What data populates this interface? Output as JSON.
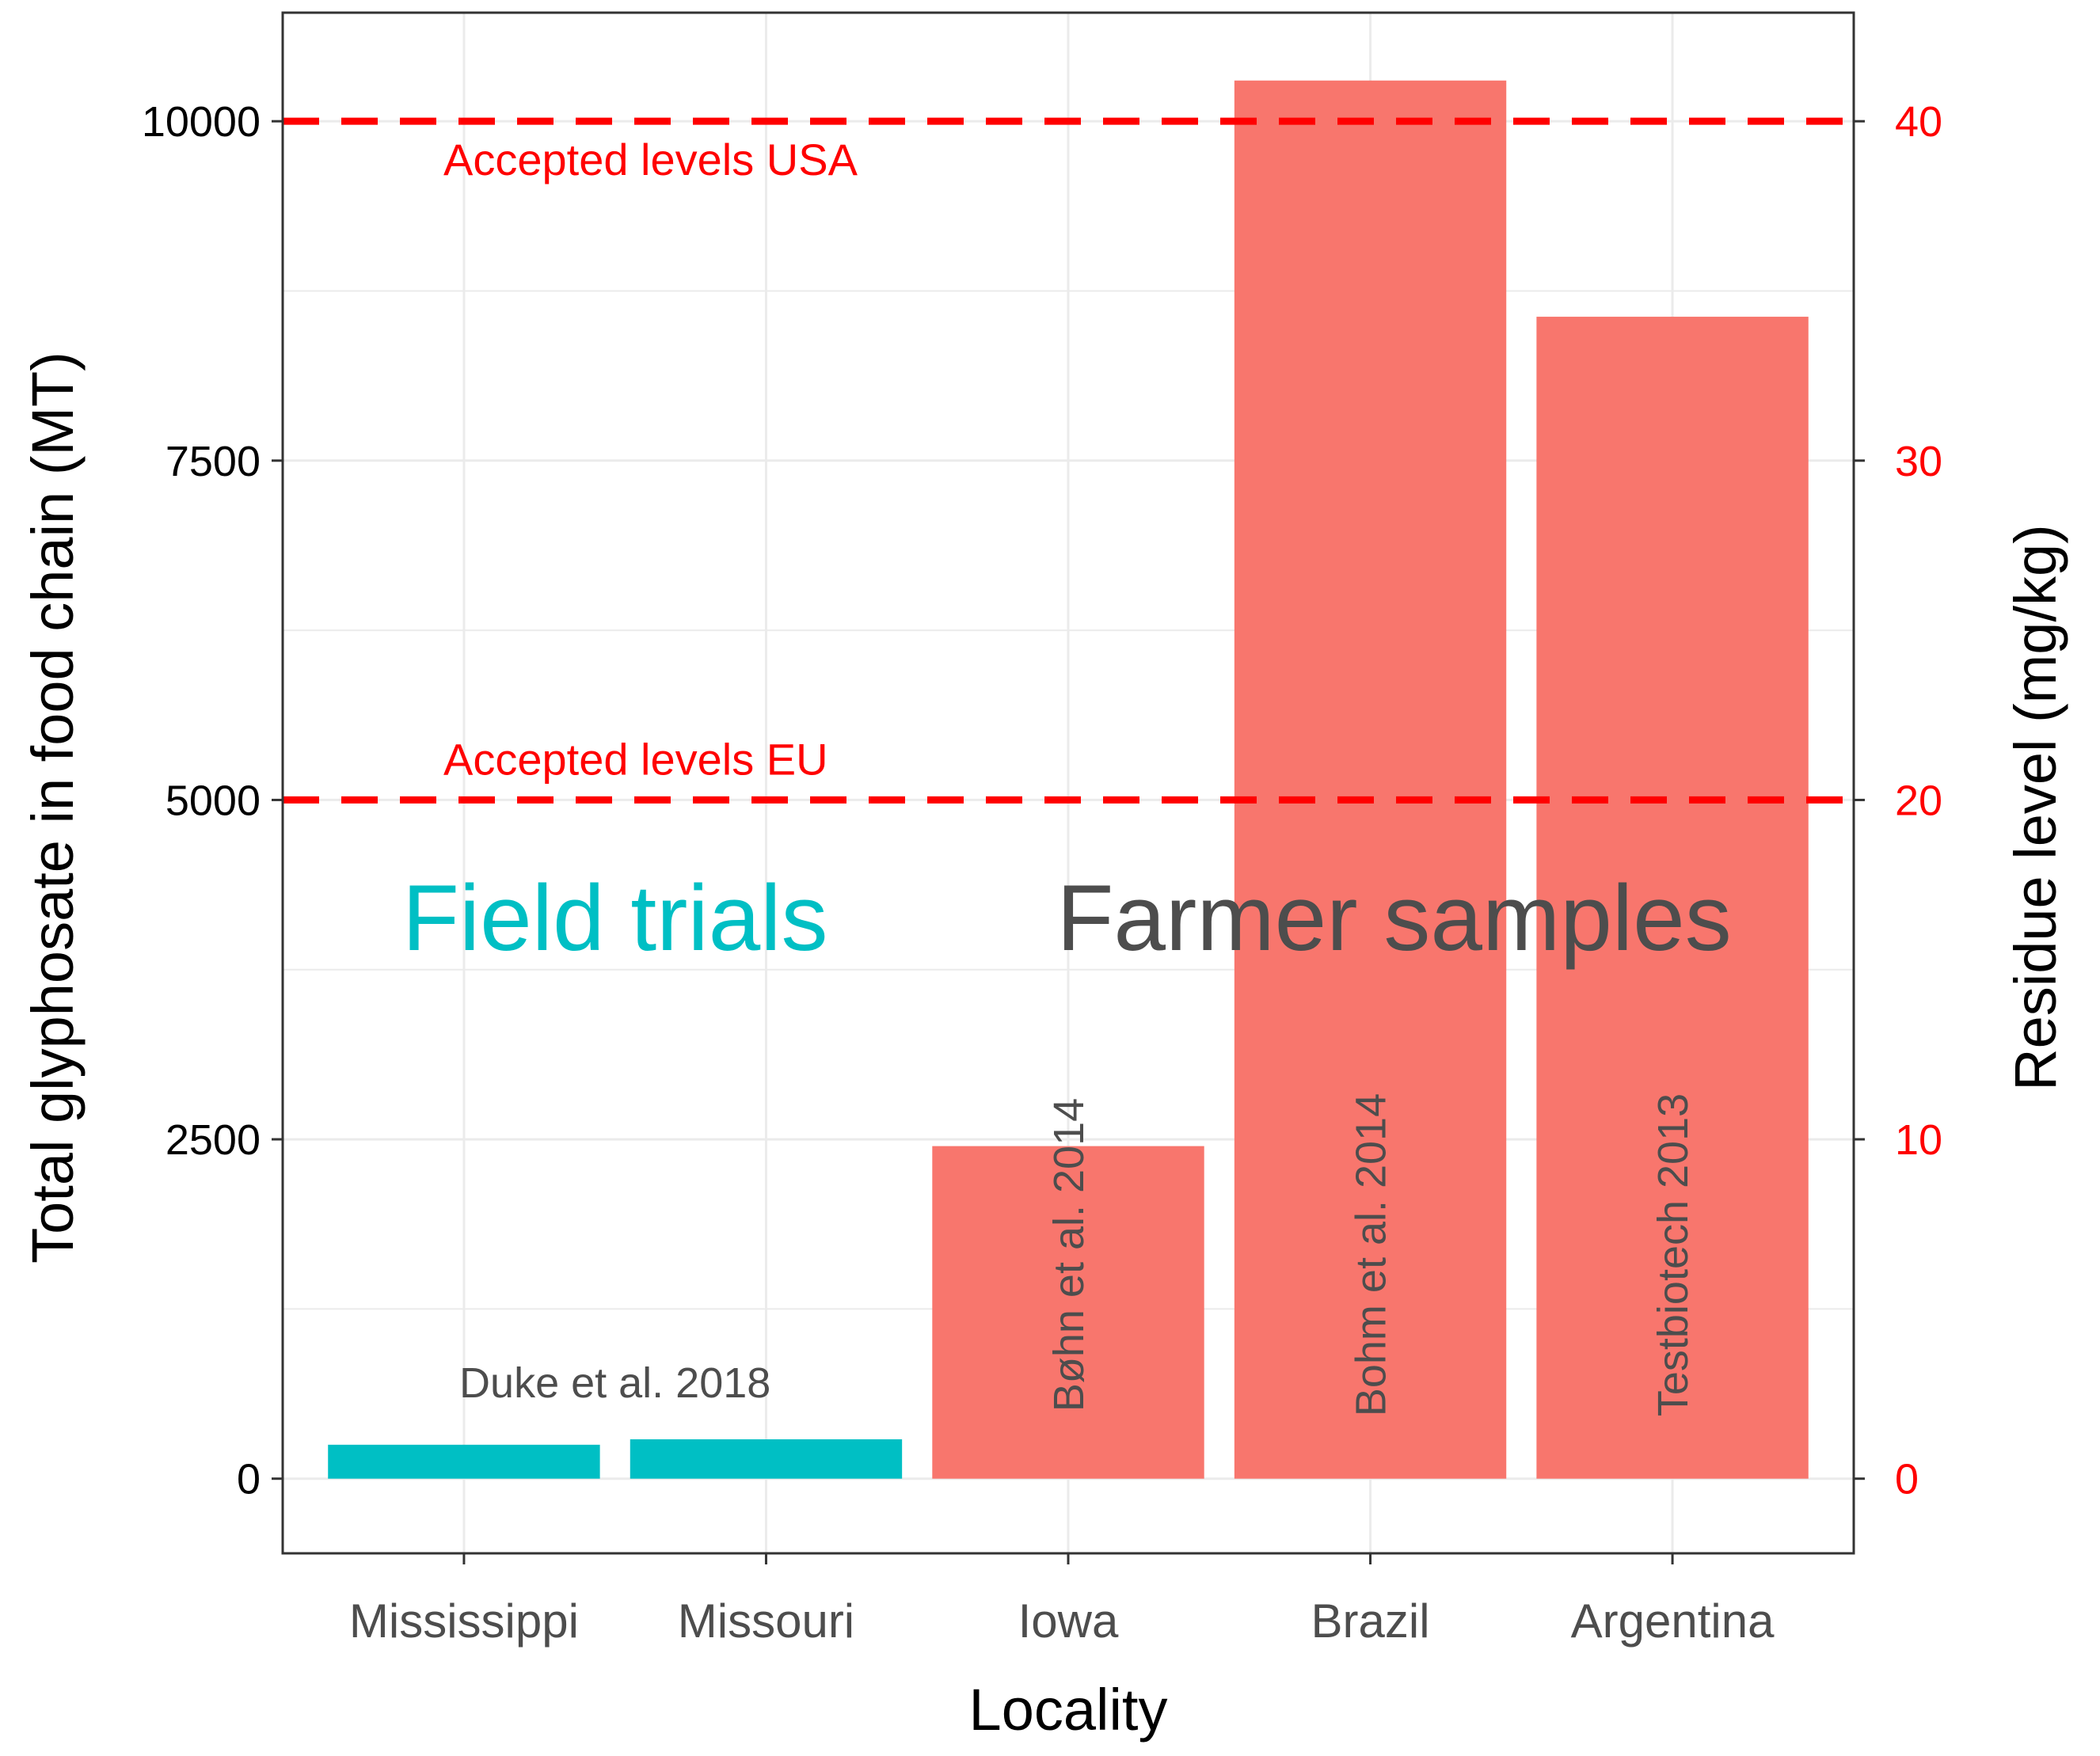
{
  "chart_data": {
    "type": "bar",
    "categories": [
      "Mississippi",
      "Missouri",
      "Iowa",
      "Brazil",
      "Argentina"
    ],
    "values": [
      250,
      290,
      2450,
      10300,
      8560
    ],
    "bar_groups": [
      "Field trials",
      "Field trials",
      "Farmer samples",
      "Farmer samples",
      "Farmer samples"
    ],
    "bar_colors": [
      "#00BFC4",
      "#00BFC4",
      "#F8766D",
      "#F8766D",
      "#F8766D"
    ],
    "bar_labels": [
      "Duke et al. 2018",
      "",
      "Bøhn et al. 2014",
      "Bohm et al. 2014",
      "Testbiotech 2013"
    ],
    "xlabel": "Locality",
    "ylabel": "Total glyphosate in food chain (MT)",
    "ylim": [
      -550,
      10800
    ],
    "yticks": [
      0,
      2500,
      5000,
      7500,
      10000
    ],
    "y2label": "Residue level (mg/kg)",
    "y2lim": [
      -2.2,
      43.2
    ],
    "y2ticks": [
      0,
      10,
      20,
      30,
      40
    ],
    "y2_color": "#FF0000",
    "reference_lines": [
      {
        "label": "Accepted levels USA",
        "value": 40,
        "axis": "right",
        "color": "#FF0000"
      },
      {
        "label": "Accepted levels EU",
        "value": 20,
        "axis": "right",
        "color": "#FF0000"
      }
    ],
    "annotations": [
      {
        "text": "Field trials",
        "color": "#00BFC4"
      },
      {
        "text": "Farmer samples",
        "color": "#4d4d4d"
      }
    ],
    "grid": true,
    "legend": "none"
  }
}
